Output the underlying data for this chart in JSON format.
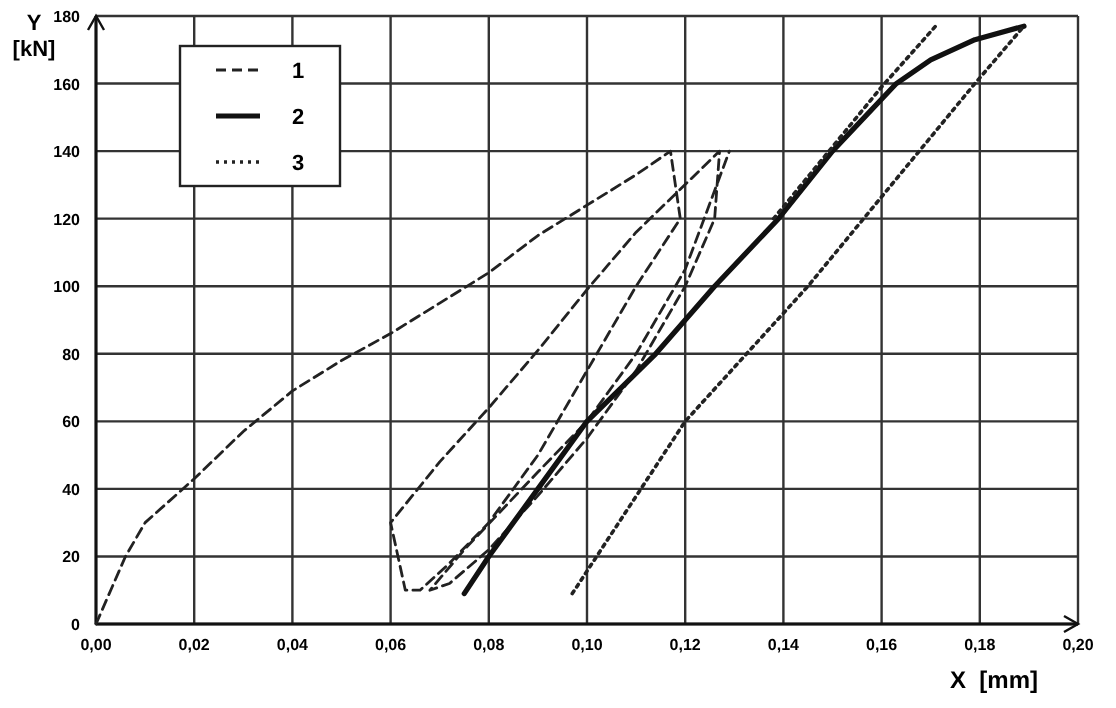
{
  "chart_data": {
    "type": "line",
    "xlabel": "X  [mm]",
    "ylabel": "Y [kN]",
    "xlim": [
      0,
      0.2
    ],
    "ylim": [
      0,
      180
    ],
    "xticks": [
      {
        "value": 0,
        "label": "0,00"
      },
      {
        "value": 0.02,
        "label": "0,02"
      },
      {
        "value": 0.04,
        "label": "0,04"
      },
      {
        "value": 0.06,
        "label": "0,06"
      },
      {
        "value": 0.08,
        "label": "0,08"
      },
      {
        "value": 0.1,
        "label": "0,10"
      },
      {
        "value": 0.12,
        "label": "0,12"
      },
      {
        "value": 0.14,
        "label": "0,14"
      },
      {
        "value": 0.16,
        "label": "0,16"
      },
      {
        "value": 0.18,
        "label": "0,18"
      },
      {
        "value": 0.2,
        "label": "0,20"
      }
    ],
    "yticks": [
      0,
      20,
      40,
      60,
      80,
      100,
      120,
      140,
      160,
      180
    ],
    "grid": true,
    "legend": "top left",
    "marker": "none",
    "series": [
      {
        "name": "1",
        "color": "#222222",
        "line_style": "dashed",
        "x": [
          0,
          0.003,
          0.006,
          0.01,
          0.02,
          0.03,
          0.04,
          0.05,
          0.06,
          0.07,
          0.08,
          0.09,
          0.1,
          0.11,
          0.117,
          0.119,
          0.11,
          0.1,
          0.09,
          0.08,
          0.072,
          0.066,
          0.063,
          0.06,
          0.07,
          0.08,
          0.09,
          0.1,
          0.11,
          0.127,
          0.126,
          0.12,
          0.11,
          0.1,
          0.09,
          0.08,
          0.072,
          0.068,
          0.075,
          0.09,
          0.1,
          0.11,
          0.12,
          0.129
        ],
        "values": [
          0,
          10,
          20,
          30,
          43,
          57,
          69,
          78,
          86,
          95,
          104,
          115,
          124,
          133,
          140,
          120,
          100,
          75,
          50,
          30,
          18,
          10,
          10,
          30,
          48,
          64,
          81,
          99,
          116,
          140,
          120,
          100,
          75,
          55,
          38,
          22,
          12,
          10,
          22,
          45,
          60,
          80,
          105,
          140
        ]
      },
      {
        "name": "2",
        "color": "#111111",
        "line_style": "solid",
        "x": [
          0.075,
          0.08,
          0.09,
          0.1,
          0.114,
          0.126,
          0.139,
          0.15,
          0.163,
          0.17,
          0.179,
          0.189
        ],
        "values": [
          9,
          20,
          40,
          60,
          80,
          100,
          120,
          140,
          160,
          167,
          173,
          177
        ]
      },
      {
        "name": "3",
        "color": "#222222",
        "line_style": "dotted",
        "x": [
          0.097,
          0.12,
          0.145,
          0.179,
          0.189,
          0.18,
          0.138,
          0.16,
          0.171
        ],
        "values": [
          9,
          60,
          100,
          160,
          177,
          null,
          120,
          159,
          177
        ]
      }
    ]
  }
}
